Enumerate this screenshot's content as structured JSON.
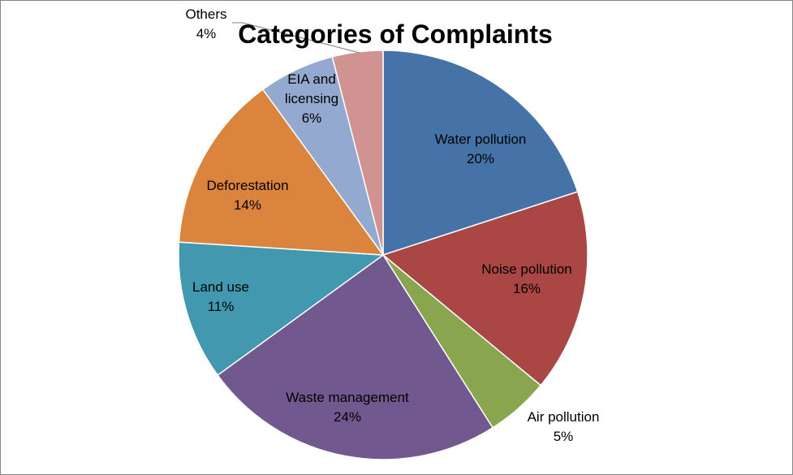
{
  "chart_data": {
    "type": "pie",
    "title": "Categories of Complaints",
    "slices": [
      {
        "label": "Water pollution",
        "value": 20,
        "display": "20%",
        "color": "#4572A7"
      },
      {
        "label": "Noise pollution",
        "value": 16,
        "display": "16%",
        "color": "#AA4643"
      },
      {
        "label": "Air pollution",
        "value": 5,
        "display": "5%",
        "color": "#89A54E"
      },
      {
        "label": "Waste management",
        "value": 24,
        "display": "24%",
        "color": "#71588F"
      },
      {
        "label": "Land use",
        "value": 11,
        "display": "11%",
        "color": "#4198AF"
      },
      {
        "label": "Deforestation",
        "value": 14,
        "display": "14%",
        "color": "#DB843D"
      },
      {
        "label": "EIA and licensing",
        "value": 6,
        "display": "6%",
        "color": "#93A9CF"
      },
      {
        "label": "Others",
        "value": 4,
        "display": "4%",
        "color": "#D19392"
      }
    ],
    "start_angle": "top (12 o'clock)",
    "direction": "clockwise",
    "legend": "none"
  }
}
